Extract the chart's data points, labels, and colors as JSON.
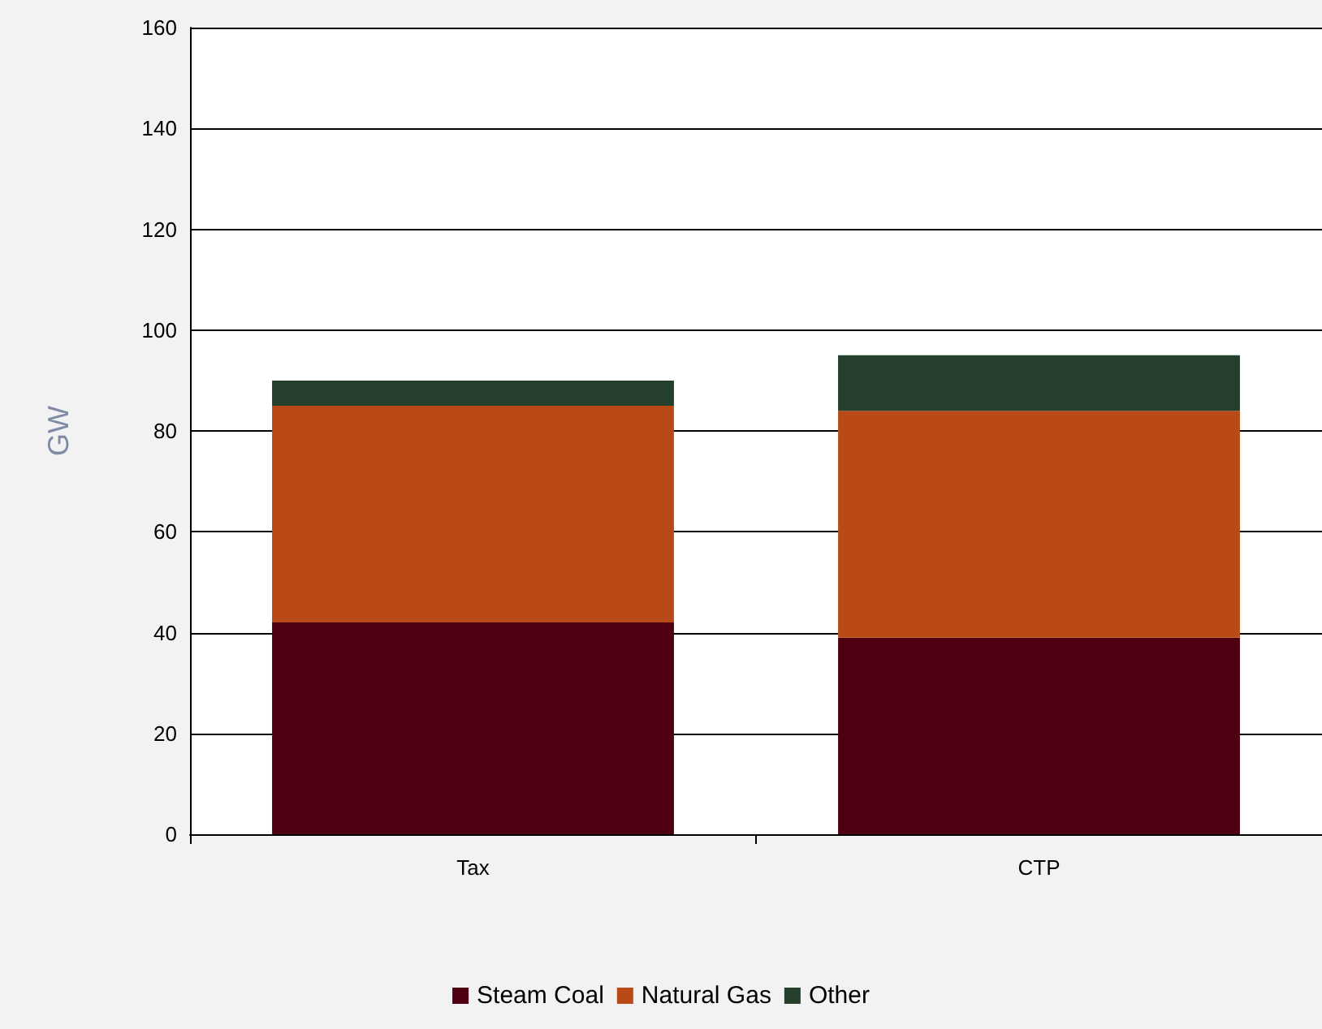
{
  "chart_data": {
    "type": "bar",
    "stacked": true,
    "ylabel": "GW",
    "categories": [
      "Tax",
      "CTP"
    ],
    "series": [
      {
        "name": "Steam Coal",
        "color": "#4f0010",
        "values": [
          42,
          39
        ]
      },
      {
        "name": "Natural Gas",
        "color": "#b94a17",
        "values": [
          43,
          45
        ]
      },
      {
        "name": "Other",
        "color": "#243f2c",
        "values": [
          5,
          11
        ]
      }
    ],
    "ylim": [
      0,
      160
    ],
    "yticks": [
      0,
      20,
      40,
      60,
      80,
      100,
      120,
      140,
      160
    ],
    "grid": "y",
    "legend": "bottom"
  }
}
